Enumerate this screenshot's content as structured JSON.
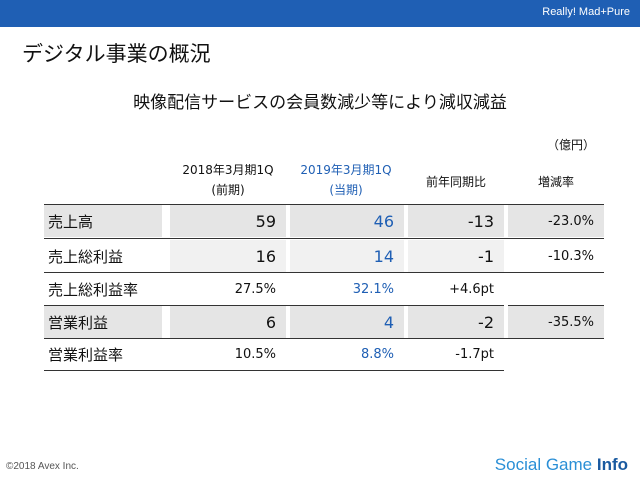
{
  "header": {
    "brand": "Really! Mad+Pure"
  },
  "title": "デジタル事業の概況",
  "subtitle": "映像配信サービスの会員数減少等により減収減益",
  "unit": "（億円）",
  "columns": {
    "prev_line1": "2018年3月期1Q",
    "prev_line2": "(前期)",
    "curr_line1": "2019年3月期1Q",
    "curr_line2": "(当期)",
    "yoy": "前年同期比",
    "rate": "増減率"
  },
  "rows": [
    {
      "label": "売上高",
      "prev": "59",
      "curr": "46",
      "yoy": "-13",
      "rate": "-23.0%"
    },
    {
      "label": "売上総利益",
      "prev": "16",
      "curr": "14",
      "yoy": "-1",
      "rate": "-10.3%"
    },
    {
      "label": "売上総利益率",
      "prev": "27.5%",
      "curr": "32.1%",
      "yoy": "+4.6pt",
      "rate": ""
    },
    {
      "label": "営業利益",
      "prev": "6",
      "curr": "4",
      "yoy": "-2",
      "rate": "-35.5%"
    },
    {
      "label": "営業利益率",
      "prev": "10.5%",
      "curr": "8.8%",
      "yoy": "-1.7pt",
      "rate": ""
    }
  ],
  "footer": {
    "copyright": "©2018 Avex Inc.",
    "watermark_a": "Social Game ",
    "watermark_b": "Info"
  },
  "colors": {
    "accent": "#1f5fb4",
    "shade": "#e5e5e5"
  }
}
